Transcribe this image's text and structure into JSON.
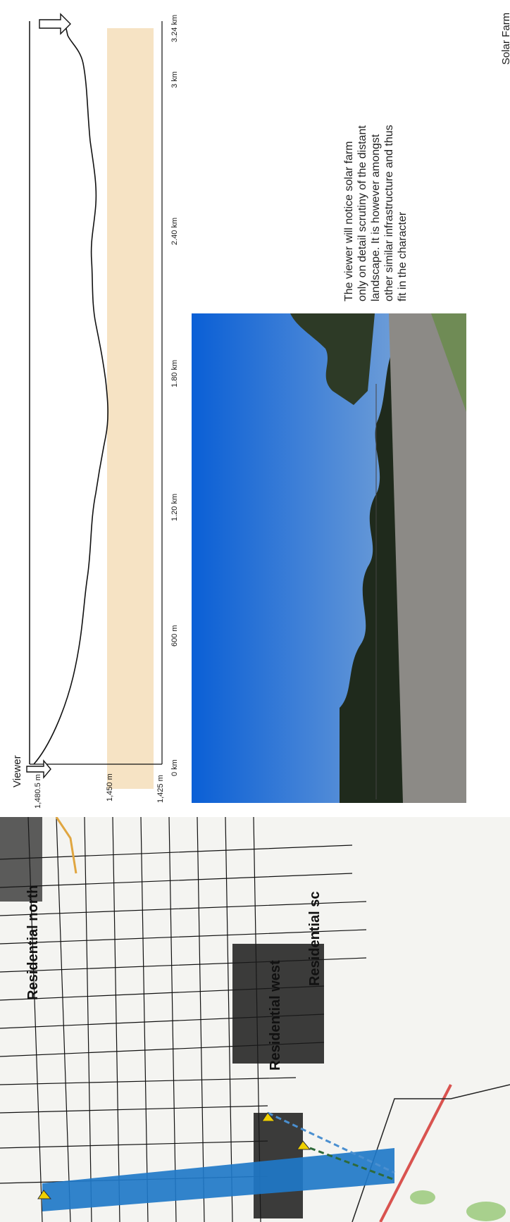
{
  "profile": {
    "viewer_label": "Viewer",
    "target_label": "Solar Farm",
    "elevation_ticks": [
      "1,480.5 m",
      "1,450 m",
      "1,425 m"
    ],
    "distance_ticks": [
      "0 km",
      "600 m",
      "1.20 km",
      "1.80 km",
      "2.40 km",
      "3 km",
      "3.24 km"
    ]
  },
  "note": {
    "text": "The viewer will notice solar farm only on detail scrutiny of the distant landscape. It is however amongst other similar infrastructure and thus fit in the character"
  },
  "map": {
    "labels": {
      "north": "Residential north",
      "west": "Residential west",
      "south": "Residential sc"
    }
  },
  "colors": {
    "sightline": "#1f78c8",
    "sky_top": "#0a5fd6",
    "band": "#f6e3c4",
    "road_red": "#d9534f"
  }
}
